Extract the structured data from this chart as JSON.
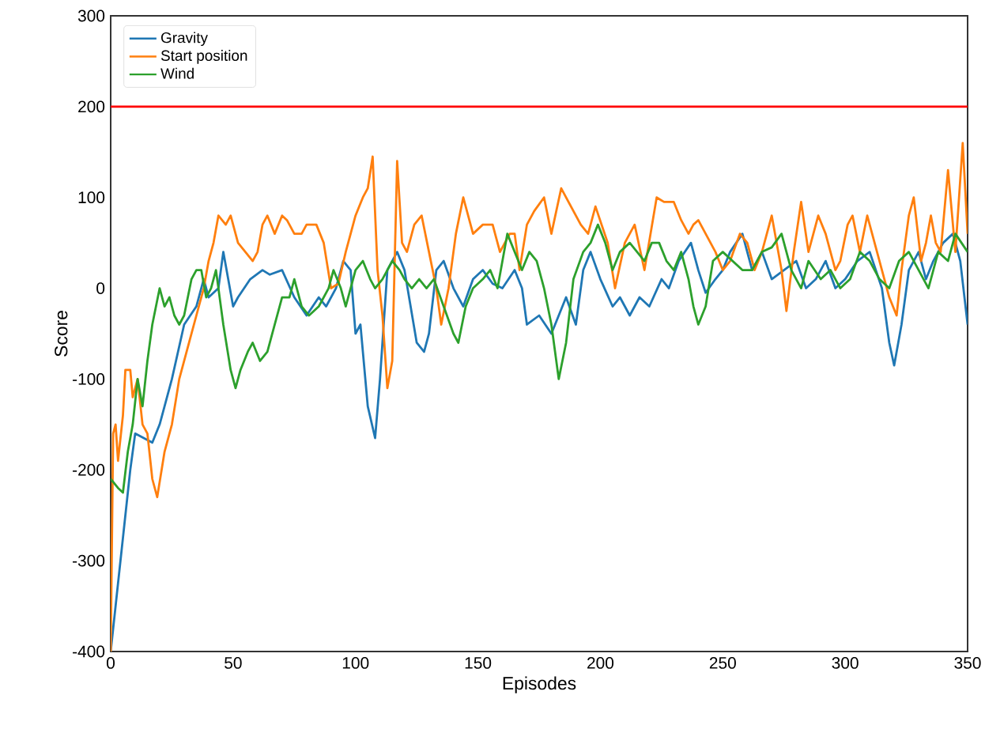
{
  "chart_data": {
    "type": "line",
    "xlabel": "Episodes",
    "ylabel": "Score",
    "xlim": [
      0,
      350
    ],
    "ylim": [
      -400,
      300
    ],
    "xticks": [
      0,
      50,
      100,
      150,
      200,
      250,
      300,
      350
    ],
    "yticks": [
      -400,
      -300,
      -200,
      -100,
      0,
      100,
      200,
      300
    ],
    "grid": false,
    "legend": "top left",
    "ref_lines": [
      {
        "axis": "y",
        "value": 200,
        "color": "#ff0000"
      }
    ],
    "series": [
      {
        "name": "Gravity",
        "color": "#1f77b4",
        "x": [
          0,
          8,
          10,
          17,
          20,
          25,
          30,
          35,
          38,
          40,
          44,
          46,
          50,
          52,
          57,
          62,
          65,
          70,
          75,
          80,
          85,
          88,
          92,
          95,
          98,
          100,
          102,
          105,
          108,
          110,
          113,
          117,
          120,
          125,
          128,
          130,
          133,
          136,
          140,
          144,
          148,
          152,
          156,
          160,
          165,
          168,
          170,
          175,
          180,
          183,
          186,
          190,
          193,
          196,
          200,
          205,
          208,
          212,
          216,
          220,
          225,
          228,
          232,
          237,
          240,
          243,
          247,
          250,
          253,
          258,
          262,
          266,
          270,
          275,
          280,
          284,
          288,
          292,
          296,
          300,
          305,
          310,
          315,
          318,
          320,
          323,
          326,
          330,
          333,
          336,
          340,
          344,
          347,
          350
        ],
        "values": [
          -400,
          -200,
          -160,
          -170,
          -150,
          -100,
          -40,
          -20,
          10,
          -10,
          0,
          40,
          -20,
          -10,
          10,
          20,
          15,
          20,
          -10,
          -30,
          -10,
          -20,
          0,
          30,
          20,
          -50,
          -40,
          -130,
          -165,
          -100,
          20,
          40,
          20,
          -60,
          -70,
          -50,
          20,
          30,
          0,
          -20,
          10,
          20,
          5,
          0,
          20,
          0,
          -40,
          -30,
          -50,
          -30,
          -10,
          -40,
          20,
          40,
          10,
          -20,
          -10,
          -30,
          -10,
          -20,
          10,
          0,
          30,
          50,
          20,
          -5,
          10,
          20,
          40,
          60,
          20,
          40,
          10,
          20,
          30,
          0,
          10,
          30,
          0,
          10,
          30,
          40,
          0,
          -60,
          -85,
          -40,
          20,
          40,
          10,
          30,
          50,
          60,
          30,
          -40
        ]
      },
      {
        "name": "Start position",
        "color": "#ff7f0e",
        "x": [
          0,
          1,
          2,
          3,
          5,
          6,
          8,
          9,
          11,
          13,
          15,
          17,
          19,
          22,
          25,
          28,
          32,
          35,
          38,
          40,
          42,
          44,
          47,
          49,
          52,
          55,
          58,
          60,
          62,
          64,
          67,
          70,
          72,
          75,
          78,
          80,
          84,
          87,
          90,
          93,
          96,
          100,
          103,
          105,
          107,
          109,
          111,
          113,
          115,
          117,
          119,
          121,
          124,
          127,
          130,
          133,
          135,
          138,
          141,
          144,
          148,
          152,
          156,
          159,
          163,
          165,
          167,
          170,
          173,
          177,
          180,
          184,
          188,
          192,
          195,
          198,
          203,
          206,
          210,
          214,
          218,
          223,
          226,
          230,
          233,
          236,
          238,
          240,
          243,
          247,
          250,
          253,
          257,
          260,
          263,
          266,
          270,
          274,
          276,
          279,
          282,
          285,
          289,
          292,
          296,
          298,
          301,
          303,
          306,
          309,
          313,
          318,
          321,
          323,
          326,
          328,
          331,
          333,
          335,
          337,
          339,
          342,
          345,
          348,
          350
        ],
        "values": [
          -400,
          -160,
          -150,
          -190,
          -140,
          -90,
          -90,
          -120,
          -100,
          -150,
          -160,
          -210,
          -230,
          -180,
          -150,
          -100,
          -60,
          -30,
          0,
          30,
          50,
          80,
          70,
          80,
          50,
          40,
          30,
          40,
          70,
          80,
          60,
          80,
          75,
          60,
          60,
          70,
          70,
          50,
          0,
          5,
          40,
          80,
          100,
          110,
          145,
          20,
          -30,
          -110,
          -80,
          140,
          50,
          40,
          70,
          80,
          40,
          0,
          -40,
          0,
          60,
          100,
          60,
          70,
          70,
          40,
          60,
          60,
          20,
          70,
          85,
          100,
          60,
          110,
          90,
          70,
          60,
          90,
          50,
          0,
          50,
          70,
          20,
          100,
          95,
          95,
          75,
          60,
          70,
          75,
          60,
          40,
          20,
          30,
          60,
          50,
          20,
          40,
          80,
          20,
          -25,
          40,
          95,
          40,
          80,
          60,
          20,
          30,
          70,
          80,
          40,
          80,
          40,
          -10,
          -30,
          20,
          80,
          100,
          30,
          50,
          80,
          50,
          40,
          130,
          40,
          160,
          60
        ]
      },
      {
        "name": "Wind",
        "color": "#2ca02c",
        "x": [
          0,
          3,
          5,
          7,
          9,
          11,
          13,
          15,
          17,
          20,
          22,
          24,
          26,
          28,
          30,
          33,
          35,
          37,
          39,
          41,
          43,
          46,
          49,
          51,
          53,
          56,
          58,
          61,
          64,
          67,
          70,
          73,
          75,
          78,
          81,
          85,
          89,
          91,
          94,
          96,
          100,
          103,
          106,
          108,
          111,
          115,
          118,
          120,
          123,
          126,
          129,
          132,
          136,
          140,
          142,
          145,
          148,
          152,
          155,
          158,
          162,
          165,
          168,
          171,
          174,
          177,
          180,
          183,
          186,
          189,
          193,
          196,
          199,
          202,
          205,
          208,
          212,
          215,
          218,
          221,
          224,
          227,
          230,
          233,
          236,
          238,
          240,
          243,
          246,
          250,
          254,
          258,
          262,
          266,
          270,
          274,
          278,
          282,
          285,
          290,
          294,
          298,
          302,
          306,
          310,
          314,
          318,
          322,
          326,
          330,
          334,
          338,
          342,
          345,
          350
        ],
        "values": [
          -210,
          -220,
          -225,
          -180,
          -150,
          -100,
          -130,
          -80,
          -40,
          0,
          -20,
          -10,
          -30,
          -40,
          -30,
          10,
          20,
          20,
          -10,
          0,
          20,
          -40,
          -90,
          -110,
          -90,
          -70,
          -60,
          -80,
          -70,
          -40,
          -10,
          -10,
          10,
          -20,
          -30,
          -20,
          0,
          20,
          0,
          -20,
          20,
          30,
          10,
          0,
          10,
          30,
          20,
          10,
          0,
          10,
          0,
          10,
          -20,
          -50,
          -60,
          -20,
          0,
          10,
          20,
          0,
          60,
          40,
          20,
          40,
          30,
          0,
          -40,
          -100,
          -60,
          10,
          40,
          50,
          70,
          50,
          20,
          40,
          50,
          40,
          30,
          50,
          50,
          30,
          20,
          40,
          10,
          -20,
          -40,
          -20,
          30,
          40,
          30,
          20,
          20,
          40,
          45,
          60,
          20,
          0,
          30,
          10,
          20,
          0,
          10,
          40,
          30,
          10,
          0,
          30,
          40,
          20,
          0,
          40,
          30,
          60,
          40
        ]
      }
    ]
  }
}
